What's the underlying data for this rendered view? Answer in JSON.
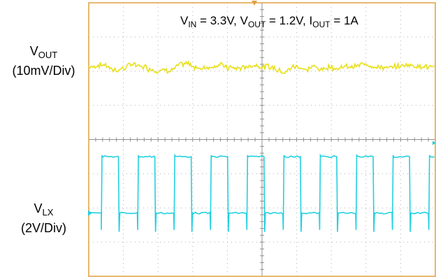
{
  "chart_data": {
    "type": "oscilloscope",
    "conditions": {
      "vin": {
        "symbol": "V",
        "sub": "IN",
        "value": "3.3V"
      },
      "vout": {
        "symbol": "V",
        "sub": "OUT",
        "value": "1.2V"
      },
      "iout": {
        "symbol": "I",
        "sub": "OUT",
        "value": "1A"
      }
    },
    "divisions": {
      "x": 10,
      "y": 8
    },
    "series": [
      {
        "name_symbol": "V",
        "name_sub": "OUT",
        "scale": "(10mV/Div)",
        "color": "#e8e01a",
        "shape": "noisy-dc",
        "level_div": 6.15,
        "ripple_pp_div": 0.25
      },
      {
        "name_symbol": "V",
        "name_sub": "LX",
        "scale": "(2V/Div)",
        "color": "#22d0e0",
        "shape": "square",
        "high_div": 3.5,
        "low_div": 1.85,
        "spike_div": 0.55,
        "period_div": 1.05,
        "duty": 0.47,
        "first_rise_div": 0.0
      }
    ],
    "frame_color": "#e0a040",
    "grid_color": "#b0b0b0"
  }
}
